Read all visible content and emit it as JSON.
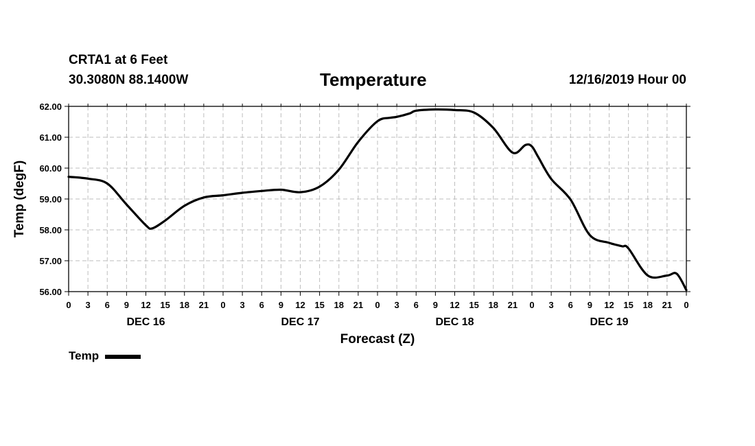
{
  "header": {
    "station": "CRTA1 at 6 Feet",
    "coords": "30.3080N 88.1400W",
    "title": "Temperature",
    "run_time": "12/16/2019 Hour 00"
  },
  "legend": {
    "label": "Temp",
    "color": "#000000"
  },
  "chart_data": {
    "type": "line",
    "title": "Temperature",
    "xlabel": "Forecast (Z)",
    "ylabel": "Temp (degF)",
    "ylim": [
      56,
      62
    ],
    "xlim": [
      0,
      96
    ],
    "grid": true,
    "y_ticks": [
      "56.00",
      "57.00",
      "58.00",
      "59.00",
      "60.00",
      "61.00",
      "62.00"
    ],
    "x_tick_hours": [
      0,
      3,
      6,
      9,
      12,
      15,
      18,
      21,
      24,
      27,
      30,
      33,
      36,
      39,
      42,
      45,
      48,
      51,
      54,
      57,
      60,
      63,
      66,
      69,
      72,
      75,
      78,
      81,
      84,
      87,
      90,
      93,
      96
    ],
    "x_tick_labels": [
      "0",
      "3",
      "6",
      "9",
      "12",
      "15",
      "18",
      "21",
      "0",
      "3",
      "6",
      "9",
      "12",
      "15",
      "18",
      "21",
      "0",
      "3",
      "6",
      "9",
      "12",
      "15",
      "18",
      "21",
      "0",
      "3",
      "6",
      "9",
      "12",
      "15",
      "18",
      "21",
      "0"
    ],
    "day_labels": [
      {
        "label": "DEC 16",
        "hour": 12
      },
      {
        "label": "DEC 17",
        "hour": 36
      },
      {
        "label": "DEC 18",
        "hour": 60
      },
      {
        "label": "DEC 19",
        "hour": 84
      }
    ],
    "series": [
      {
        "name": "Temp",
        "color": "#000000",
        "x": [
          0,
          3,
          6,
          9,
          12,
          13,
          15,
          18,
          21,
          24,
          27,
          30,
          33,
          36,
          39,
          42,
          45,
          48,
          50,
          51,
          53,
          54,
          57,
          60,
          63,
          66,
          69,
          71,
          72,
          73,
          75,
          78,
          81,
          84,
          86,
          87,
          90,
          93,
          94.5,
          96
        ],
        "values": [
          59.72,
          59.66,
          59.5,
          58.82,
          58.15,
          58.05,
          58.3,
          58.78,
          59.05,
          59.12,
          59.2,
          59.26,
          59.3,
          59.22,
          59.4,
          59.95,
          60.85,
          61.52,
          61.63,
          61.66,
          61.77,
          61.86,
          61.9,
          61.88,
          61.8,
          61.3,
          60.5,
          60.75,
          60.7,
          60.35,
          59.65,
          58.98,
          57.83,
          57.58,
          57.47,
          57.4,
          56.52,
          56.52,
          56.58,
          56.05
        ]
      }
    ]
  }
}
